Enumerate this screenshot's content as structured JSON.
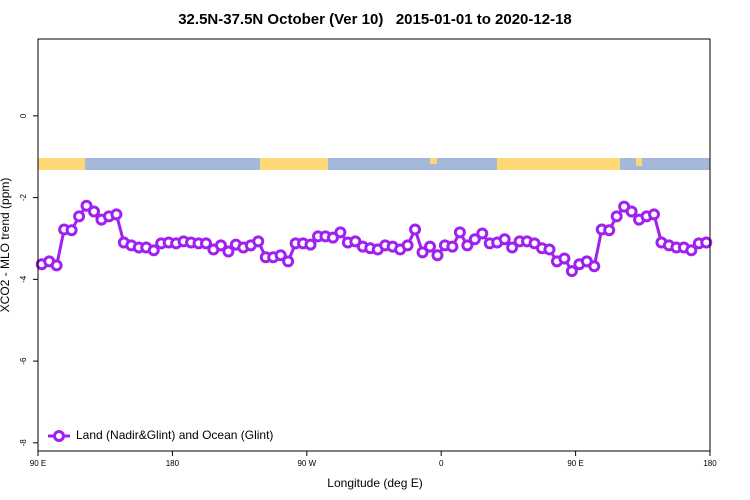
{
  "chart_data": {
    "type": "line",
    "title": "32.5N-37.5N October (Ver 10)   2015-01-01 to 2020-12-18",
    "xlabel": "Longitude (deg E)",
    "ylabel": "XCO2 - MLO trend (ppm)",
    "xlim": [
      90,
      540
    ],
    "xticks": [
      {
        "value": 90,
        "label": "90 E"
      },
      {
        "value": 180,
        "label": "180"
      },
      {
        "value": 270,
        "label": "90 W"
      },
      {
        "value": 360,
        "label": "0"
      },
      {
        "value": 450,
        "label": "90 E"
      },
      {
        "value": 540,
        "label": "180"
      }
    ],
    "ylim": [
      -8.2,
      1.88
    ],
    "yticks": [
      0,
      -2,
      -4,
      -6,
      -8
    ],
    "legend": "lower left",
    "x": [
      92.5,
      97.5,
      102.5,
      107.5,
      112.5,
      117.5,
      122.5,
      127.5,
      132.5,
      137.5,
      142.5,
      147.5,
      152.5,
      157.5,
      162.5,
      167.5,
      172.5,
      177.5,
      182.5,
      187.5,
      192.5,
      197.5,
      202.5,
      207.5,
      212.5,
      217.5,
      222.5,
      227.5,
      232.5,
      237.5,
      242.5,
      247.5,
      252.5,
      257.5,
      262.5,
      267.5,
      272.5,
      277.5,
      282.5,
      287.5,
      292.5,
      297.5,
      302.5,
      307.5,
      312.5,
      317.5,
      322.5,
      327.5,
      332.5,
      337.5,
      342.5,
      347.5,
      352.5,
      357.5,
      362.5,
      367.5,
      372.5,
      377.5,
      382.5,
      387.5,
      392.5,
      397.5,
      402.5,
      407.5,
      412.5,
      417.5,
      422.5,
      427.5,
      432.5,
      437.5,
      442.5,
      447.5,
      452.5,
      457.5,
      462.5,
      467.5,
      472.5,
      477.5,
      482.5,
      487.5,
      492.5,
      497.5,
      502.5,
      507.5,
      512.5,
      517.5,
      522.5,
      527.5,
      532.5,
      537.5
    ],
    "series": [
      {
        "name": "Land (Nadir&Glint) and Ocean (Glint)",
        "color": "#a020f0",
        "values": [
          -3.63,
          -3.56,
          -3.66,
          -2.78,
          -2.8,
          -2.46,
          -2.2,
          -2.34,
          -2.54,
          -2.46,
          -2.41,
          -3.1,
          -3.17,
          -3.22,
          -3.22,
          -3.29,
          -3.12,
          -3.1,
          -3.12,
          -3.07,
          -3.1,
          -3.12,
          -3.12,
          -3.27,
          -3.17,
          -3.32,
          -3.15,
          -3.22,
          -3.17,
          -3.07,
          -3.46,
          -3.46,
          -3.41,
          -3.56,
          -3.12,
          -3.12,
          -3.15,
          -2.95,
          -2.95,
          -2.98,
          -2.85,
          -3.1,
          -3.07,
          -3.2,
          -3.24,
          -3.27,
          -3.17,
          -3.2,
          -3.27,
          -3.17,
          -2.78,
          -3.34,
          -3.2,
          -3.41,
          -3.17,
          -3.2,
          -2.85,
          -3.17,
          -3.02,
          -2.88,
          -3.12,
          -3.1,
          -3.02,
          -3.22,
          -3.07,
          -3.07,
          -3.12,
          -3.24,
          -3.27,
          -3.56,
          -3.49,
          -3.8,
          -3.63,
          -3.56,
          -3.68,
          -2.78,
          -2.8,
          -2.46,
          -2.22,
          -2.34,
          -2.54,
          -2.46,
          -2.41,
          -3.1,
          -3.17,
          -3.22,
          -3.22,
          -3.29,
          -3.12,
          -3.1
        ]
      }
    ]
  }
}
